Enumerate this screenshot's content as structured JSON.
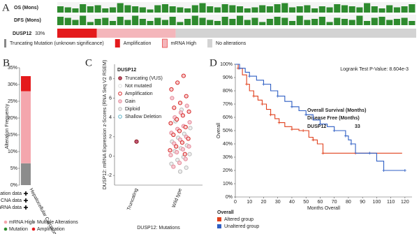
{
  "chart_data": [
    {
      "type": "oncoprint",
      "panel": "A",
      "ylim": [
        0,
        1
      ],
      "tracks": [
        {
          "name": "OS (Mons)",
          "color": "#2e8b2e",
          "values": [
            0.6,
            0.5,
            0.4,
            0.8,
            0.6,
            0.7,
            0.4,
            0.5,
            0.9,
            0.7,
            0.6,
            0.5,
            0.3,
            0.7,
            0.8,
            0.6,
            0.5,
            0.4,
            0.7,
            0.9,
            0.6,
            0.5,
            0.8,
            0.7,
            0.6,
            0.4,
            0.5,
            0.7,
            0.6,
            0.8,
            0.9,
            0.5,
            0.6,
            0.7,
            0.4,
            0.6,
            0.5,
            0.8,
            0.7,
            0.6,
            0.5,
            0.9,
            0.6,
            0.4,
            0.7,
            0.5,
            0.6,
            0.8
          ]
        },
        {
          "name": "DFS (Mons)",
          "color": "#2e8b2e",
          "values": [
            0.8,
            0.7,
            0.5,
            0.9,
            0.3,
            0.6,
            0.7,
            0.4,
            0.8,
            0.5,
            0.9,
            0.6,
            0.4,
            0.7,
            0.5,
            0.8,
            0.3,
            0.6,
            0.9,
            0.7,
            0.5,
            0.4,
            0.8,
            0.6,
            0.9,
            0.5,
            0.7,
            0.3,
            0.6,
            0.8,
            0.7,
            0.4,
            0.9,
            0.5,
            0.6,
            0.8,
            0.3,
            0.7,
            0.6,
            0.5,
            0.9,
            0.4,
            0.7,
            0.8,
            0.5,
            0.6,
            0.7,
            0.4
          ]
        }
      ],
      "gene": "DUSP12",
      "altered_label": "33%",
      "segments": [
        {
          "name": "Amplification",
          "color": "#e41a1c",
          "value": 11
        },
        {
          "name": "mRNA High",
          "color": "#f4b6bb",
          "value": 22
        },
        {
          "name": "No alterations",
          "color": "#d3d3d3",
          "value": 67
        }
      ],
      "legend": [
        {
          "name": "Truncating Mutation (unknown significance)",
          "color": "#888888"
        },
        {
          "name": "Amplification",
          "color": "#e41a1c"
        },
        {
          "name": "mRNA High",
          "color": "#f4b6bb"
        },
        {
          "name": "No alterations",
          "color": "#d3d3d3"
        }
      ]
    },
    {
      "type": "bar",
      "panel": "B",
      "y_label": "Alteration Frequency",
      "categories": [
        "Hepatocellular Carcinoma"
      ],
      "series": [
        {
          "color": "#8c8c8c",
          "values": [
            6.5
          ]
        },
        {
          "color": "#f4a6ad",
          "values": [
            21.5
          ]
        },
        {
          "color": "#e41a1c",
          "values": [
            4.5
          ]
        }
      ],
      "ylim": [
        0,
        35
      ],
      "yticks": [
        {
          "value": 0,
          "label": "0%"
        },
        {
          "value": 5,
          "label": "5%"
        },
        {
          "value": 10,
          "label": "10%"
        },
        {
          "value": 15,
          "label": "15%"
        },
        {
          "value": 20,
          "label": "20%"
        },
        {
          "value": 25,
          "label": "25%"
        },
        {
          "value": 30,
          "label": "30%"
        },
        {
          "value": 35,
          "label": "35%"
        }
      ],
      "data_rows": [
        "Mutation data",
        "CNA data",
        "mRNA data"
      ],
      "legend": [
        {
          "name": "mRNA High",
          "color": "#f4a6ad"
        },
        {
          "name": "Multiple Alterations",
          "color": "#8c8c8c"
        },
        {
          "name": "Mutation",
          "color": "#2e8b2e"
        },
        {
          "name": "Amplification",
          "color": "#e41a1c"
        }
      ]
    },
    {
      "type": "strip",
      "panel": "C",
      "y_label": "DUSP12: mRNA Expression z-Scores (RNA Seq V2 RSEM)",
      "x_label": "DUSP12: Mutations",
      "categories": [
        "Truncating",
        "Wild type"
      ],
      "ylim": [
        -3,
        9.5
      ],
      "yticks": [
        -2,
        0,
        2,
        4,
        6,
        8
      ],
      "series": [
        {
          "category": "Truncating",
          "color": "#8b1a1a",
          "fill": "#c0587a",
          "values": [
            1.5
          ]
        },
        {
          "category": "Wild type",
          "color": "#bbbbbb",
          "fill": "#eeeeee",
          "values": [
            4.8,
            3.6,
            2.9,
            2.3,
            1.9,
            1.5,
            1.1,
            0.8,
            0.5,
            0.2,
            -0.1,
            -0.4,
            -0.8,
            -1.2,
            -1.6
          ]
        },
        {
          "category": "Wild type",
          "color": "#e58a9a",
          "fill": "#f6cdd4",
          "values": [
            6.0,
            5.2,
            4.5,
            4.0,
            3.5,
            3.1,
            2.8,
            2.4,
            2.0,
            1.7,
            1.3,
            1.0,
            0.7,
            0.4,
            0.1,
            -0.3,
            -0.7,
            -1.1
          ]
        },
        {
          "category": "Wild type",
          "color": "#d62728",
          "fill": "#f8d0d0",
          "values": [
            8.3,
            7.6,
            6.9,
            6.2,
            5.5,
            5.0,
            4.6,
            4.2,
            3.8,
            3.4,
            3.0,
            2.6,
            2.2,
            1.8,
            1.4,
            1.0,
            0.6,
            0.2
          ]
        }
      ],
      "legend_title": "DUSP12",
      "legend": [
        {
          "name": "Truncating (VUS)",
          "color": "#8b1a1a",
          "fill": "#c0587a"
        },
        {
          "name": "Not mutated",
          "color": "#dddddd",
          "fill": "#ffffff"
        },
        {
          "name": "Amplification",
          "color": "#d62728",
          "fill": "#ffffff"
        },
        {
          "name": "Gain",
          "color": "#e58a9a",
          "fill": "#f6cdd4"
        },
        {
          "name": "Diploid",
          "color": "#bbbbbb",
          "fill": "#eeeeee"
        },
        {
          "name": "Shallow Deletion",
          "color": "#5fb6c9",
          "fill": "#ffffff"
        }
      ]
    },
    {
      "type": "line",
      "panel": "D",
      "x_label": "Months Overall",
      "y_label": "Overall",
      "annotation": "Logrank Test P-Value: 8.604e-3",
      "info": [
        "Overall Survival (Months)",
        "Disease Free (Months)",
        "DUSP12",
        "33"
      ],
      "xlim": [
        0,
        125
      ],
      "xticks": [
        0,
        10,
        20,
        30,
        40,
        50,
        60,
        70,
        80,
        90,
        100,
        110,
        120
      ],
      "ylim": [
        0,
        100
      ],
      "yticks": [
        {
          "value": 0,
          "label": "0%"
        },
        {
          "value": 10,
          "label": "10%"
        },
        {
          "value": 20,
          "label": "20%"
        },
        {
          "value": 30,
          "label": "30%"
        },
        {
          "value": 40,
          "label": "40%"
        },
        {
          "value": 50,
          "label": "50%"
        },
        {
          "value": 60,
          "label": "60%"
        },
        {
          "value": 70,
          "label": "70%"
        },
        {
          "value": 80,
          "label": "80%"
        },
        {
          "value": 90,
          "label": "90%"
        },
        {
          "value": 100,
          "label": "100%"
        }
      ],
      "legend_title": "Overall",
      "series": [
        {
          "name": "Altered group",
          "color": "#e0401c",
          "x": [
            0,
            2,
            5,
            8,
            10,
            13,
            16,
            19,
            22,
            25,
            28,
            31,
            35,
            40,
            45,
            48,
            52,
            55,
            58,
            62,
            70,
            85,
            118
          ],
          "values": [
            100,
            97,
            92,
            85,
            80,
            76,
            73,
            70,
            66,
            62,
            59,
            56,
            53,
            51,
            50,
            50,
            45,
            43,
            40,
            33,
            33,
            33,
            33
          ]
        },
        {
          "name": "Unaltered group",
          "color": "#2f5fc4",
          "x": [
            0,
            3,
            7,
            10,
            15,
            20,
            25,
            30,
            35,
            40,
            45,
            50,
            55,
            60,
            65,
            70,
            75,
            78,
            80,
            82,
            85,
            95,
            100,
            105,
            112,
            120
          ],
          "values": [
            100,
            97,
            94,
            91,
            88,
            85,
            80,
            76,
            72,
            68,
            65,
            62,
            58,
            55,
            53,
            50,
            50,
            46,
            43,
            40,
            33,
            33,
            27,
            20,
            20,
            20
          ]
        }
      ]
    }
  ]
}
